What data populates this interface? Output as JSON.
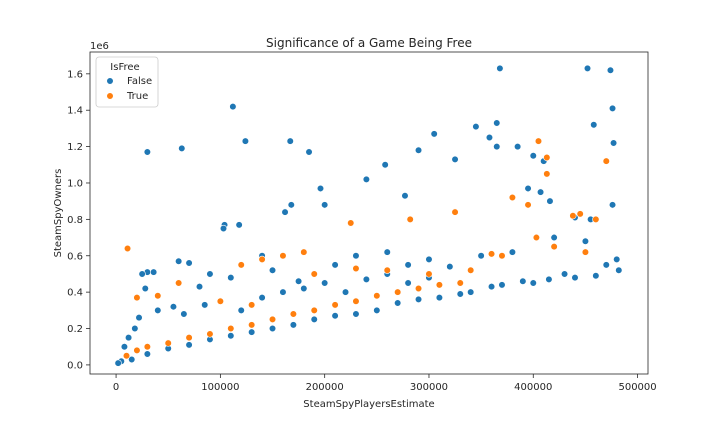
{
  "chart_data": {
    "type": "scatter",
    "title": "Significance of a Game Being Free",
    "xlabel": "SteamSpyPlayersEstimate",
    "ylabel": "SteamSpyOwners",
    "y_offset_label": "1e6",
    "xlim": [
      -25000,
      510000
    ],
    "ylim": [
      -0.05,
      1.72
    ],
    "x_ticks": [
      0,
      100000,
      200000,
      300000,
      400000,
      500000
    ],
    "x_tick_labels": [
      "0",
      "100000",
      "200000",
      "300000",
      "400000",
      "500000"
    ],
    "y_ticks": [
      0.0,
      0.2,
      0.4,
      0.6,
      0.8,
      1.0,
      1.2,
      1.4,
      1.6
    ],
    "y_tick_labels": [
      "0.0",
      "0.2",
      "0.4",
      "0.6",
      "0.8",
      "1.0",
      "1.2",
      "1.4",
      "1.6"
    ],
    "grid": false,
    "legend": {
      "title": "IsFree",
      "placement": "top-left",
      "entries": [
        "False",
        "True"
      ]
    },
    "series": [
      {
        "name": "False",
        "color": "#1f77b4",
        "points": [
          [
            30000,
            1.17
          ],
          [
            63000,
            1.19
          ],
          [
            112000,
            1.42
          ],
          [
            124000,
            1.23
          ],
          [
            167000,
            1.23
          ],
          [
            185000,
            1.17
          ],
          [
            258000,
            1.1
          ],
          [
            290000,
            1.18
          ],
          [
            305000,
            1.27
          ],
          [
            325000,
            1.13
          ],
          [
            345000,
            1.31
          ],
          [
            358000,
            1.25
          ],
          [
            365000,
            1.33
          ],
          [
            368000,
            1.63
          ],
          [
            385000,
            1.2
          ],
          [
            365000,
            1.2
          ],
          [
            400000,
            1.15
          ],
          [
            410000,
            1.12
          ],
          [
            452000,
            1.63
          ],
          [
            474000,
            1.62
          ],
          [
            476000,
            1.41
          ],
          [
            458000,
            1.32
          ],
          [
            477000,
            1.22
          ],
          [
            196000,
            0.97
          ],
          [
            200000,
            0.88
          ],
          [
            240000,
            1.02
          ],
          [
            277000,
            0.93
          ],
          [
            168000,
            0.88
          ],
          [
            162000,
            0.84
          ],
          [
            104000,
            0.77
          ],
          [
            103000,
            0.75
          ],
          [
            118000,
            0.77
          ],
          [
            395000,
            0.97
          ],
          [
            407000,
            0.95
          ],
          [
            416000,
            0.9
          ],
          [
            440000,
            0.81
          ],
          [
            455000,
            0.8
          ],
          [
            476000,
            0.88
          ],
          [
            30000,
            0.51
          ],
          [
            36000,
            0.51
          ],
          [
            28000,
            0.42
          ],
          [
            60000,
            0.57
          ],
          [
            70000,
            0.56
          ],
          [
            90000,
            0.5
          ],
          [
            140000,
            0.6
          ],
          [
            25000,
            0.5
          ],
          [
            80000,
            0.43
          ],
          [
            110000,
            0.48
          ],
          [
            150000,
            0.52
          ],
          [
            175000,
            0.46
          ],
          [
            210000,
            0.55
          ],
          [
            230000,
            0.6
          ],
          [
            260000,
            0.62
          ],
          [
            280000,
            0.55
          ],
          [
            300000,
            0.58
          ],
          [
            320000,
            0.54
          ],
          [
            350000,
            0.6
          ],
          [
            380000,
            0.62
          ],
          [
            420000,
            0.7
          ],
          [
            450000,
            0.68
          ],
          [
            480000,
            0.58
          ],
          [
            482000,
            0.52
          ],
          [
            470000,
            0.55
          ],
          [
            460000,
            0.49
          ],
          [
            440000,
            0.48
          ],
          [
            430000,
            0.5
          ],
          [
            415000,
            0.47
          ],
          [
            400000,
            0.45
          ],
          [
            390000,
            0.46
          ],
          [
            370000,
            0.44
          ],
          [
            360000,
            0.43
          ],
          [
            340000,
            0.4
          ],
          [
            330000,
            0.39
          ],
          [
            310000,
            0.37
          ],
          [
            290000,
            0.36
          ],
          [
            270000,
            0.34
          ],
          [
            250000,
            0.3
          ],
          [
            230000,
            0.28
          ],
          [
            210000,
            0.27
          ],
          [
            190000,
            0.25
          ],
          [
            170000,
            0.22
          ],
          [
            150000,
            0.2
          ],
          [
            130000,
            0.18
          ],
          [
            110000,
            0.16
          ],
          [
            90000,
            0.14
          ],
          [
            70000,
            0.11
          ],
          [
            50000,
            0.09
          ],
          [
            30000,
            0.06
          ],
          [
            15000,
            0.03
          ],
          [
            5000,
            0.02
          ],
          [
            2000,
            0.01
          ],
          [
            8000,
            0.1
          ],
          [
            12000,
            0.15
          ],
          [
            18000,
            0.2
          ],
          [
            22000,
            0.26
          ],
          [
            40000,
            0.3
          ],
          [
            55000,
            0.32
          ],
          [
            65000,
            0.28
          ],
          [
            85000,
            0.33
          ],
          [
            100000,
            0.35
          ],
          [
            120000,
            0.3
          ],
          [
            140000,
            0.37
          ],
          [
            160000,
            0.4
          ],
          [
            180000,
            0.42
          ],
          [
            200000,
            0.45
          ],
          [
            220000,
            0.4
          ],
          [
            240000,
            0.47
          ],
          [
            260000,
            0.5
          ],
          [
            280000,
            0.45
          ],
          [
            300000,
            0.48
          ]
        ]
      },
      {
        "name": "True",
        "color": "#ff7f0e",
        "points": [
          [
            11000,
            0.64
          ],
          [
            405000,
            1.23
          ],
          [
            413000,
            1.14
          ],
          [
            470000,
            1.12
          ],
          [
            413000,
            1.05
          ],
          [
            380000,
            0.92
          ],
          [
            395000,
            0.88
          ],
          [
            225000,
            0.78
          ],
          [
            282000,
            0.8
          ],
          [
            325000,
            0.84
          ],
          [
            438000,
            0.82
          ],
          [
            445000,
            0.83
          ],
          [
            460000,
            0.8
          ],
          [
            403000,
            0.7
          ],
          [
            360000,
            0.61
          ],
          [
            180000,
            0.62
          ],
          [
            160000,
            0.6
          ],
          [
            140000,
            0.58
          ],
          [
            120000,
            0.55
          ],
          [
            60000,
            0.45
          ],
          [
            40000,
            0.38
          ],
          [
            20000,
            0.37
          ],
          [
            100000,
            0.35
          ],
          [
            130000,
            0.33
          ],
          [
            190000,
            0.5
          ],
          [
            230000,
            0.53
          ],
          [
            260000,
            0.52
          ],
          [
            300000,
            0.5
          ],
          [
            340000,
            0.52
          ],
          [
            370000,
            0.6
          ],
          [
            420000,
            0.65
          ],
          [
            450000,
            0.62
          ],
          [
            10000,
            0.05
          ],
          [
            20000,
            0.08
          ],
          [
            30000,
            0.1
          ],
          [
            50000,
            0.12
          ],
          [
            70000,
            0.15
          ],
          [
            90000,
            0.17
          ],
          [
            110000,
            0.2
          ],
          [
            130000,
            0.22
          ],
          [
            150000,
            0.25
          ],
          [
            170000,
            0.28
          ],
          [
            190000,
            0.3
          ],
          [
            210000,
            0.33
          ],
          [
            230000,
            0.35
          ],
          [
            250000,
            0.38
          ],
          [
            270000,
            0.4
          ],
          [
            290000,
            0.42
          ],
          [
            310000,
            0.44
          ],
          [
            330000,
            0.45
          ]
        ]
      }
    ]
  }
}
